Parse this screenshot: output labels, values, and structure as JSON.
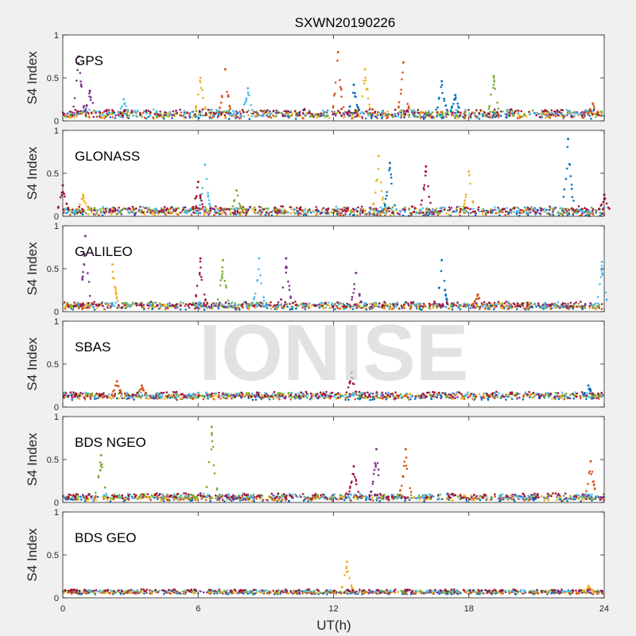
{
  "chart_data": {
    "type": "scatter",
    "title": "SXWN20190226",
    "xlabel": "UT(h)",
    "ylabel": "S4 Index",
    "xlim": [
      0,
      24
    ],
    "ylim": [
      0,
      1
    ],
    "xticks": [
      "0",
      "6",
      "12",
      "18",
      "24"
    ],
    "yticks": [
      "0",
      "0.5",
      "1"
    ],
    "watermark": "IONISE",
    "grid": false,
    "colors": [
      "#0072BD",
      "#D95319",
      "#EDB120",
      "#7E2F8E",
      "#77AC30",
      "#4DBEEE",
      "#A2142F"
    ],
    "panels": [
      {
        "name": "GPS",
        "baseline": 0.08,
        "noise": 0.04,
        "spikes": [
          {
            "x": 0.7,
            "y": 0.75,
            "color": "#7E2F8E"
          },
          {
            "x": 1.2,
            "y": 0.35,
            "color": "#7E2F8E"
          },
          {
            "x": 2.7,
            "y": 0.25,
            "color": "#4DBEEE"
          },
          {
            "x": 6.1,
            "y": 0.5,
            "color": "#EDB120"
          },
          {
            "x": 7.2,
            "y": 0.6,
            "color": "#D95319"
          },
          {
            "x": 8.2,
            "y": 0.38,
            "color": "#4DBEEE"
          },
          {
            "x": 12.2,
            "y": 0.8,
            "color": "#D95319"
          },
          {
            "x": 12.9,
            "y": 0.42,
            "color": "#0072BD"
          },
          {
            "x": 13.4,
            "y": 0.6,
            "color": "#EDB120"
          },
          {
            "x": 15.1,
            "y": 0.68,
            "color": "#D95319"
          },
          {
            "x": 16.8,
            "y": 0.46,
            "color": "#0072BD"
          },
          {
            "x": 17.4,
            "y": 0.3,
            "color": "#0072BD"
          },
          {
            "x": 19.1,
            "y": 0.52,
            "color": "#77AC30"
          },
          {
            "x": 23.5,
            "y": 0.2,
            "color": "#D95319"
          }
        ]
      },
      {
        "name": "GLONASS",
        "baseline": 0.06,
        "noise": 0.04,
        "spikes": [
          {
            "x": 0.0,
            "y": 0.36,
            "color": "#A2142F"
          },
          {
            "x": 0.9,
            "y": 0.25,
            "color": "#EDB120"
          },
          {
            "x": 6.3,
            "y": 0.6,
            "color": "#4DBEEE"
          },
          {
            "x": 6.0,
            "y": 0.4,
            "color": "#A2142F"
          },
          {
            "x": 7.7,
            "y": 0.3,
            "color": "#77AC30"
          },
          {
            "x": 14.0,
            "y": 0.7,
            "color": "#EDB120"
          },
          {
            "x": 14.5,
            "y": 0.62,
            "color": "#0072BD"
          },
          {
            "x": 16.1,
            "y": 0.58,
            "color": "#A2142F"
          },
          {
            "x": 18.0,
            "y": 0.52,
            "color": "#EDB120"
          },
          {
            "x": 22.4,
            "y": 0.9,
            "color": "#0072BD"
          },
          {
            "x": 24.0,
            "y": 0.25,
            "color": "#A2142F"
          }
        ]
      },
      {
        "name": "GALILEO",
        "baseline": 0.07,
        "noise": 0.03,
        "spikes": [
          {
            "x": 1.0,
            "y": 0.88,
            "color": "#7E2F8E"
          },
          {
            "x": 2.2,
            "y": 0.55,
            "color": "#EDB120"
          },
          {
            "x": 6.1,
            "y": 0.62,
            "color": "#A2142F"
          },
          {
            "x": 7.1,
            "y": 0.6,
            "color": "#77AC30"
          },
          {
            "x": 8.7,
            "y": 0.62,
            "color": "#4DBEEE"
          },
          {
            "x": 9.9,
            "y": 0.62,
            "color": "#7E2F8E"
          },
          {
            "x": 13.0,
            "y": 0.45,
            "color": "#7E2F8E"
          },
          {
            "x": 16.8,
            "y": 0.6,
            "color": "#0072BD"
          },
          {
            "x": 18.4,
            "y": 0.2,
            "color": "#D95319"
          },
          {
            "x": 23.9,
            "y": 0.58,
            "color": "#4DBEEE"
          }
        ]
      },
      {
        "name": "SBAS",
        "baseline": 0.13,
        "noise": 0.03,
        "spikes": [
          {
            "x": 2.4,
            "y": 0.3,
            "color": "#D95319"
          },
          {
            "x": 3.5,
            "y": 0.25,
            "color": "#D95319"
          },
          {
            "x": 12.8,
            "y": 0.4,
            "color": "#A2142F"
          },
          {
            "x": 23.3,
            "y": 0.25,
            "color": "#0072BD"
          }
        ]
      },
      {
        "name": "BDS NGEO",
        "baseline": 0.06,
        "noise": 0.03,
        "spikes": [
          {
            "x": 1.7,
            "y": 0.55,
            "color": "#77AC30"
          },
          {
            "x": 6.6,
            "y": 0.88,
            "color": "#77AC30"
          },
          {
            "x": 12.9,
            "y": 0.42,
            "color": "#A2142F"
          },
          {
            "x": 13.9,
            "y": 0.62,
            "color": "#7E2F8E"
          },
          {
            "x": 15.2,
            "y": 0.62,
            "color": "#D95319"
          },
          {
            "x": 23.4,
            "y": 0.48,
            "color": "#D95319"
          }
        ]
      },
      {
        "name": "BDS GEO",
        "baseline": 0.07,
        "noise": 0.01,
        "spikes": [
          {
            "x": 12.6,
            "y": 0.42,
            "color": "#EDB120"
          },
          {
            "x": 23.3,
            "y": 0.14,
            "color": "#EDB120"
          }
        ]
      }
    ]
  }
}
